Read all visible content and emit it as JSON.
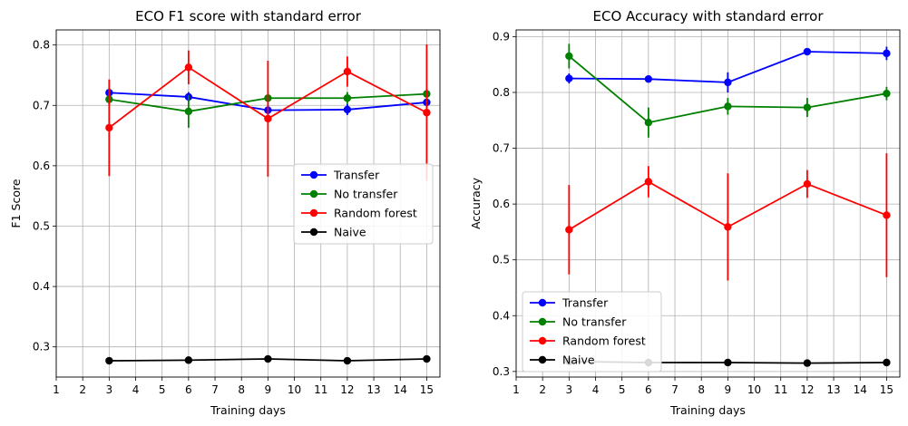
{
  "chart_data": [
    {
      "type": "line",
      "title": "ECO F1 score with standard error",
      "xlabel": "Training days",
      "ylabel": "F1 Score",
      "xlim": [
        1,
        15.5
      ],
      "ylim": [
        0.25,
        0.825
      ],
      "xticks": [
        1,
        2,
        3,
        4,
        5,
        6,
        7,
        8,
        9,
        10,
        11,
        12,
        13,
        14,
        15
      ],
      "yticks": [
        0.3,
        0.4,
        0.5,
        0.6,
        0.7,
        0.8
      ],
      "ytick_labels": [
        "0.3",
        "0.4",
        "0.5",
        "0.6",
        "0.7",
        "0.8"
      ],
      "grid": true,
      "legend_position": "center-right",
      "x": [
        3,
        6,
        9,
        12,
        15
      ],
      "series": [
        {
          "name": "Transfer",
          "color": "#0000ff",
          "values": [
            0.721,
            0.714,
            0.692,
            0.693,
            0.705
          ],
          "errors": [
            0.008,
            0.008,
            0.009,
            0.009,
            0.009
          ]
        },
        {
          "name": "No transfer",
          "color": "#008000",
          "values": [
            0.71,
            0.69,
            0.712,
            0.712,
            0.719
          ],
          "errors": [
            0.01,
            0.027,
            0.01,
            0.01,
            0.008
          ]
        },
        {
          "name": "Random forest",
          "color": "#ff0000",
          "values": [
            0.663,
            0.763,
            0.678,
            0.756,
            0.688
          ],
          "errors": [
            0.08,
            0.028,
            0.096,
            0.025,
            0.113
          ]
        },
        {
          "name": "Naive",
          "color": "#000000",
          "values": [
            0.277,
            0.278,
            0.28,
            0.277,
            0.28
          ],
          "errors": [
            0.002,
            0.002,
            0.002,
            0.002,
            0.002
          ]
        }
      ]
    },
    {
      "type": "line",
      "title": "ECO Accuracy with standard error",
      "xlabel": "Training days",
      "ylabel": "Accuracy",
      "xlim": [
        1,
        15.5
      ],
      "ylim": [
        0.29,
        0.912
      ],
      "xticks": [
        1,
        2,
        3,
        4,
        5,
        6,
        7,
        8,
        9,
        10,
        11,
        12,
        13,
        14,
        15
      ],
      "yticks": [
        0.3,
        0.4,
        0.5,
        0.6,
        0.7,
        0.8,
        0.9
      ],
      "ytick_labels": [
        "0.3",
        "0.4",
        "0.5",
        "0.6",
        "0.7",
        "0.8",
        "0.9"
      ],
      "grid": true,
      "legend_position": "lower-left",
      "x": [
        3,
        6,
        9,
        12,
        15
      ],
      "series": [
        {
          "name": "Transfer",
          "color": "#0000ff",
          "values": [
            0.825,
            0.824,
            0.818,
            0.873,
            0.87
          ],
          "errors": [
            0.009,
            0.004,
            0.018,
            0.005,
            0.012
          ]
        },
        {
          "name": "No transfer",
          "color": "#008000",
          "values": [
            0.865,
            0.746,
            0.775,
            0.773,
            0.798
          ],
          "errors": [
            0.022,
            0.027,
            0.015,
            0.017,
            0.012
          ]
        },
        {
          "name": "Random forest",
          "color": "#ff0000",
          "values": [
            0.554,
            0.64,
            0.559,
            0.636,
            0.58
          ],
          "errors": [
            0.08,
            0.028,
            0.096,
            0.025,
            0.111
          ]
        },
        {
          "name": "Naive",
          "color": "#000000",
          "values": [
            0.318,
            0.316,
            0.316,
            0.315,
            0.316
          ],
          "errors": [
            0.002,
            0.002,
            0.002,
            0.002,
            0.002
          ]
        }
      ]
    }
  ]
}
